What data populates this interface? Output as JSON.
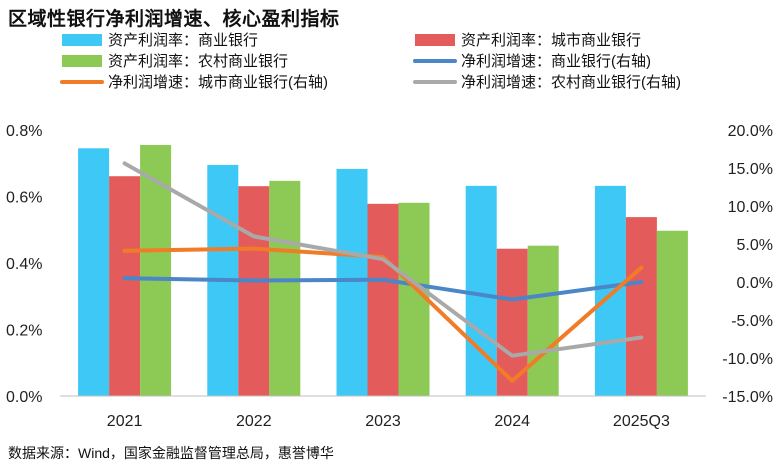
{
  "title": "区域性银行净利润增速、核心盈利指标",
  "source": "数据来源：Wind，国家金融监督管理总局，惠誉博华",
  "chart_data": {
    "type": "bar+line",
    "categories": [
      "2021",
      "2022",
      "2023",
      "2024",
      "2025Q3"
    ],
    "left_axis": {
      "ylim": [
        0,
        0.8
      ],
      "ticks": [
        "0.0%",
        "0.2%",
        "0.4%",
        "0.6%",
        "0.8%"
      ],
      "tick_values": [
        0,
        0.2,
        0.4,
        0.6,
        0.8
      ]
    },
    "right_axis": {
      "ylim": [
        -15,
        20
      ],
      "ticks": [
        "20.0%",
        "15.0%",
        "10.0%",
        "5.0%",
        "0.0%",
        "-5.0%",
        "-10.0%",
        "-15.0%"
      ],
      "tick_values": [
        20,
        15,
        10,
        5,
        0,
        -5,
        -10,
        -15
      ]
    },
    "bar_series": [
      {
        "name": "资产利润率：商业银行",
        "color": "#3ec8f5",
        "values": [
          0.745,
          0.695,
          0.683,
          0.632,
          0.632
        ]
      },
      {
        "name": "资产利润率：城市商业银行",
        "color": "#e45b5b",
        "values": [
          0.661,
          0.631,
          0.578,
          0.443,
          0.538
        ]
      },
      {
        "name": "资产利润率：农村商业银行",
        "color": "#8dc955",
        "values": [
          0.755,
          0.647,
          0.581,
          0.452,
          0.497
        ]
      }
    ],
    "line_series": [
      {
        "name": "净利润增速：商业银行(右轴)",
        "color": "#4a86c8",
        "values": [
          0.5,
          0.2,
          0.3,
          -2.3,
          0.0
        ]
      },
      {
        "name": "净利润增速：城市商业银行(右轴)",
        "color": "#f07c28",
        "values": [
          4.1,
          4.4,
          3.3,
          -13.0,
          1.9
        ]
      },
      {
        "name": "净利润增速：农村商业银行(右轴)",
        "color": "#a9a9a9",
        "values": [
          15.6,
          6.0,
          3.0,
          -9.7,
          -7.3
        ]
      }
    ],
    "legend": [
      {
        "label": "资产利润率：商业银行",
        "kind": "bar",
        "color": "#3ec8f5"
      },
      {
        "label": "资产利润率：城市商业银行",
        "kind": "bar",
        "color": "#e45b5b"
      },
      {
        "label": "资产利润率：农村商业银行",
        "kind": "bar",
        "color": "#8dc955"
      },
      {
        "label": "净利润增速：商业银行(右轴)",
        "kind": "line",
        "color": "#4a86c8"
      },
      {
        "label": "净利润增速：城市商业银行(右轴)",
        "kind": "line",
        "color": "#f07c28"
      },
      {
        "label": "净利润增速：农村商业银行(右轴)",
        "kind": "line",
        "color": "#a9a9a9"
      }
    ],
    "legend_position": "top"
  }
}
